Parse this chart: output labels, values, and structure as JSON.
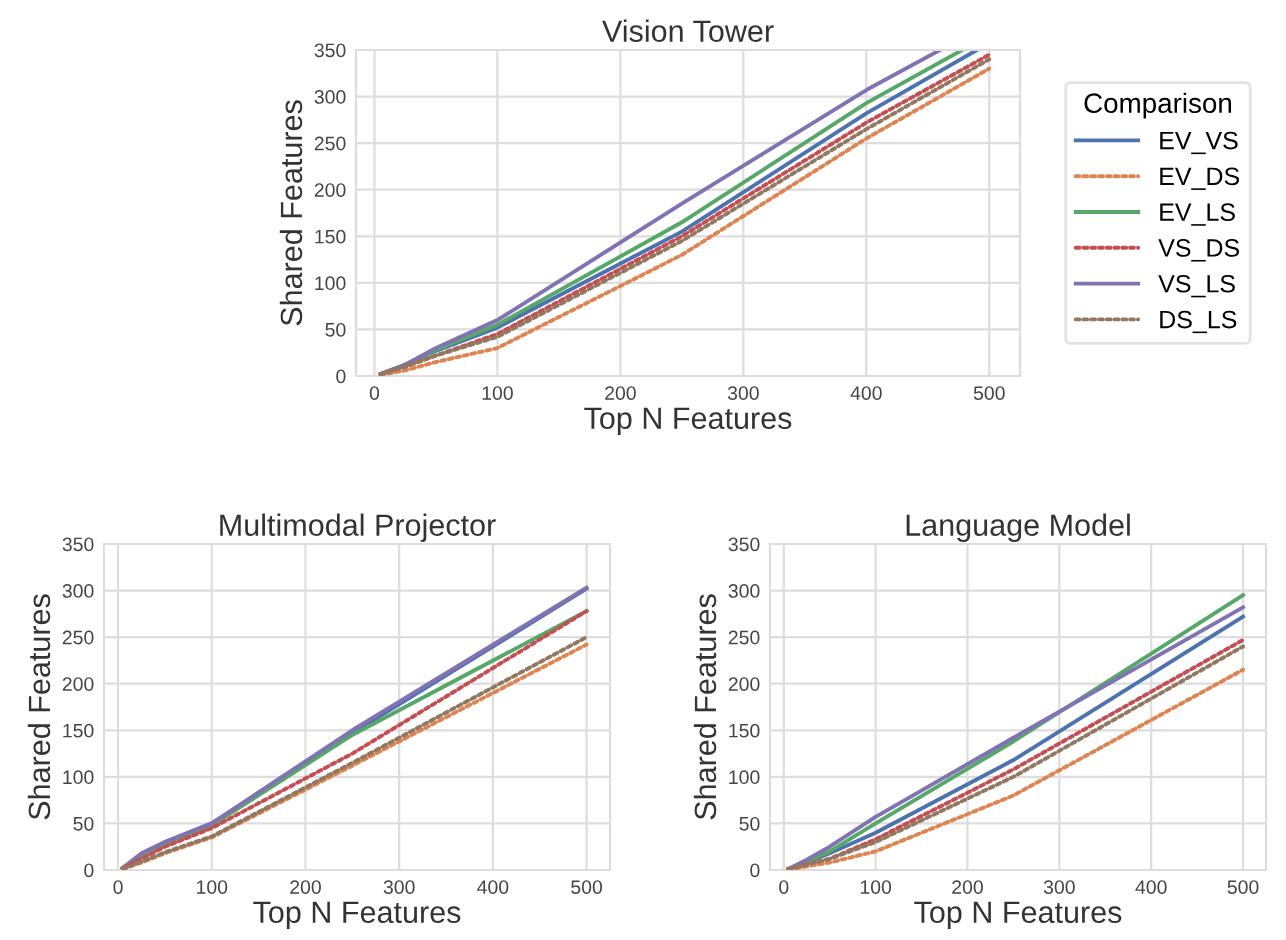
{
  "chart_data": [
    {
      "type": "line",
      "title": "Vision Tower",
      "xlabel": "Top N Features",
      "ylabel": "Shared Features",
      "legend_title": "Comparison",
      "legend": "right",
      "grid": true,
      "xlim": [
        -15,
        525
      ],
      "ylim": [
        0,
        350
      ],
      "xticks": [
        0,
        100,
        200,
        300,
        400,
        500
      ],
      "yticks": [
        0,
        50,
        100,
        150,
        200,
        250,
        300,
        350
      ],
      "series": [
        {
          "name": "EV_VS",
          "color": "#4c72b0",
          "line_style": "solid",
          "x": [
            5,
            25,
            50,
            100,
            250,
            400,
            490
          ],
          "values": [
            2,
            12,
            27,
            52,
            155,
            282,
            350
          ]
        },
        {
          "name": "EV_DS",
          "color": "#dd8452",
          "line_style": "dotted",
          "x": [
            5,
            25,
            50,
            100,
            250,
            400,
            500
          ],
          "values": [
            1,
            6,
            15,
            30,
            130,
            255,
            330
          ]
        },
        {
          "name": "EV_LS",
          "color": "#55a868",
          "line_style": "solid",
          "x": [
            5,
            25,
            50,
            100,
            250,
            400,
            478
          ],
          "values": [
            2,
            12,
            28,
            55,
            165,
            293,
            350
          ]
        },
        {
          "name": "VS_DS",
          "color": "#c44e52",
          "line_style": "dotted",
          "x": [
            5,
            25,
            50,
            100,
            250,
            400,
            500
          ],
          "values": [
            2,
            10,
            22,
            45,
            150,
            272,
            345
          ]
        },
        {
          "name": "VS_LS",
          "color": "#8172b3",
          "line_style": "solid",
          "x": [
            5,
            25,
            50,
            100,
            250,
            400,
            460
          ],
          "values": [
            2,
            12,
            30,
            60,
            185,
            307,
            350
          ]
        },
        {
          "name": "DS_LS",
          "color": "#937860",
          "line_style": "dotted",
          "x": [
            5,
            25,
            50,
            100,
            250,
            400,
            500
          ],
          "values": [
            2,
            10,
            22,
            42,
            145,
            265,
            340
          ]
        }
      ]
    },
    {
      "type": "line",
      "title": "Multimodal Projector",
      "xlabel": "Top N Features",
      "ylabel": "Shared Features",
      "grid": true,
      "xlim": [
        -15,
        525
      ],
      "ylim": [
        0,
        350
      ],
      "xticks": [
        0,
        100,
        200,
        300,
        400,
        500
      ],
      "yticks": [
        0,
        50,
        100,
        150,
        200,
        250,
        300,
        350
      ],
      "series": [
        {
          "color": "#4c72b0",
          "line_style": "solid",
          "x": [
            5,
            25,
            50,
            100,
            250,
            500
          ],
          "values": [
            2,
            17,
            30,
            50,
            147,
            302
          ]
        },
        {
          "color": "#dd8452",
          "line_style": "dotted",
          "x": [
            5,
            25,
            50,
            100,
            250,
            500
          ],
          "values": [
            1,
            8,
            18,
            35,
            112,
            242
          ]
        },
        {
          "color": "#55a868",
          "line_style": "solid",
          "x": [
            5,
            25,
            50,
            100,
            250,
            500
          ],
          "values": [
            2,
            15,
            28,
            48,
            145,
            278
          ]
        },
        {
          "color": "#c44e52",
          "line_style": "dotted",
          "x": [
            5,
            25,
            50,
            100,
            250,
            500
          ],
          "values": [
            2,
            12,
            25,
            45,
            125,
            278
          ]
        },
        {
          "color": "#8172b3",
          "line_style": "solid",
          "x": [
            5,
            25,
            50,
            100,
            250,
            500
          ],
          "values": [
            2,
            18,
            30,
            50,
            150,
            303
          ]
        },
        {
          "color": "#937860",
          "line_style": "dotted",
          "x": [
            5,
            25,
            50,
            100,
            250,
            500
          ],
          "values": [
            1,
            9,
            19,
            36,
            115,
            250
          ]
        }
      ]
    },
    {
      "type": "line",
      "title": "Language Model",
      "xlabel": "Top N Features",
      "ylabel": "Shared Features",
      "grid": true,
      "xlim": [
        -15,
        525
      ],
      "ylim": [
        0,
        350
      ],
      "xticks": [
        0,
        100,
        200,
        300,
        400,
        500
      ],
      "yticks": [
        0,
        50,
        100,
        150,
        200,
        250,
        300,
        350
      ],
      "series": [
        {
          "color": "#4c72b0",
          "line_style": "solid",
          "x": [
            5,
            25,
            50,
            100,
            250,
            500
          ],
          "values": [
            1,
            8,
            18,
            40,
            118,
            272
          ]
        },
        {
          "color": "#dd8452",
          "line_style": "dotted",
          "x": [
            5,
            25,
            50,
            100,
            250,
            500
          ],
          "values": [
            0,
            4,
            8,
            20,
            80,
            215
          ]
        },
        {
          "color": "#55a868",
          "line_style": "solid",
          "x": [
            5,
            25,
            50,
            100,
            250,
            500
          ],
          "values": [
            1,
            9,
            20,
            50,
            138,
            295
          ]
        },
        {
          "color": "#c44e52",
          "line_style": "dotted",
          "x": [
            5,
            25,
            50,
            100,
            250,
            500
          ],
          "values": [
            1,
            6,
            12,
            33,
            108,
            247
          ]
        },
        {
          "color": "#8172b3",
          "line_style": "solid",
          "x": [
            5,
            25,
            50,
            100,
            250,
            500
          ],
          "values": [
            1,
            11,
            25,
            57,
            142,
            282
          ]
        },
        {
          "color": "#937860",
          "line_style": "dotted",
          "x": [
            5,
            25,
            50,
            100,
            250,
            500
          ],
          "values": [
            1,
            6,
            12,
            30,
            100,
            240
          ]
        }
      ]
    }
  ]
}
